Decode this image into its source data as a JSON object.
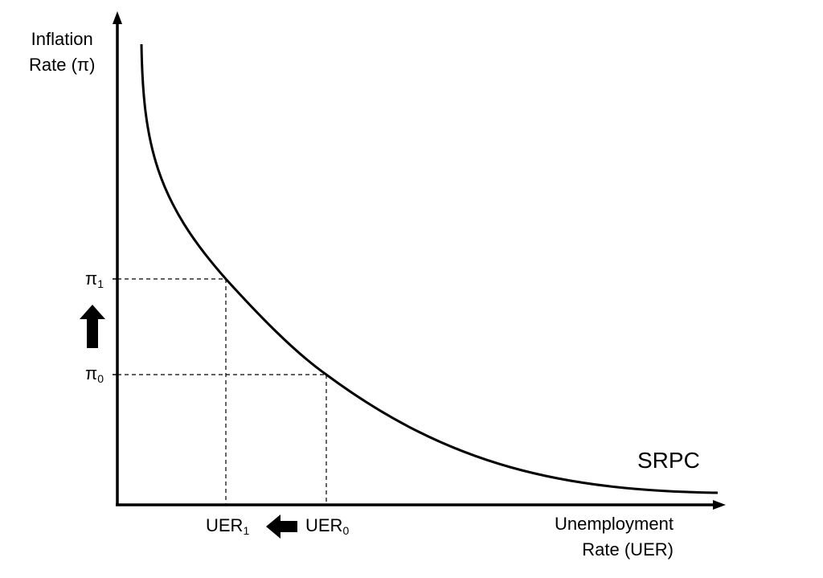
{
  "axes": {
    "y_label_line1": "Inflation",
    "y_label_line2": "Rate (π)",
    "x_label_line1": "Unemployment",
    "x_label_line2": "Rate (UER)"
  },
  "curve": {
    "label": "SRPC"
  },
  "ticks": {
    "pi1_base": "π",
    "pi1_sub": "1",
    "pi0_base": "π",
    "pi0_sub": "0",
    "uer1_base": "UER",
    "uer1_sub": "1",
    "uer0_base": "UER",
    "uer0_sub": "0"
  },
  "arrows": {
    "inflation_shift": "up-arrow",
    "unemployment_shift": "left-arrow"
  },
  "colors": {
    "ink": "#000000",
    "background": "#ffffff"
  }
}
